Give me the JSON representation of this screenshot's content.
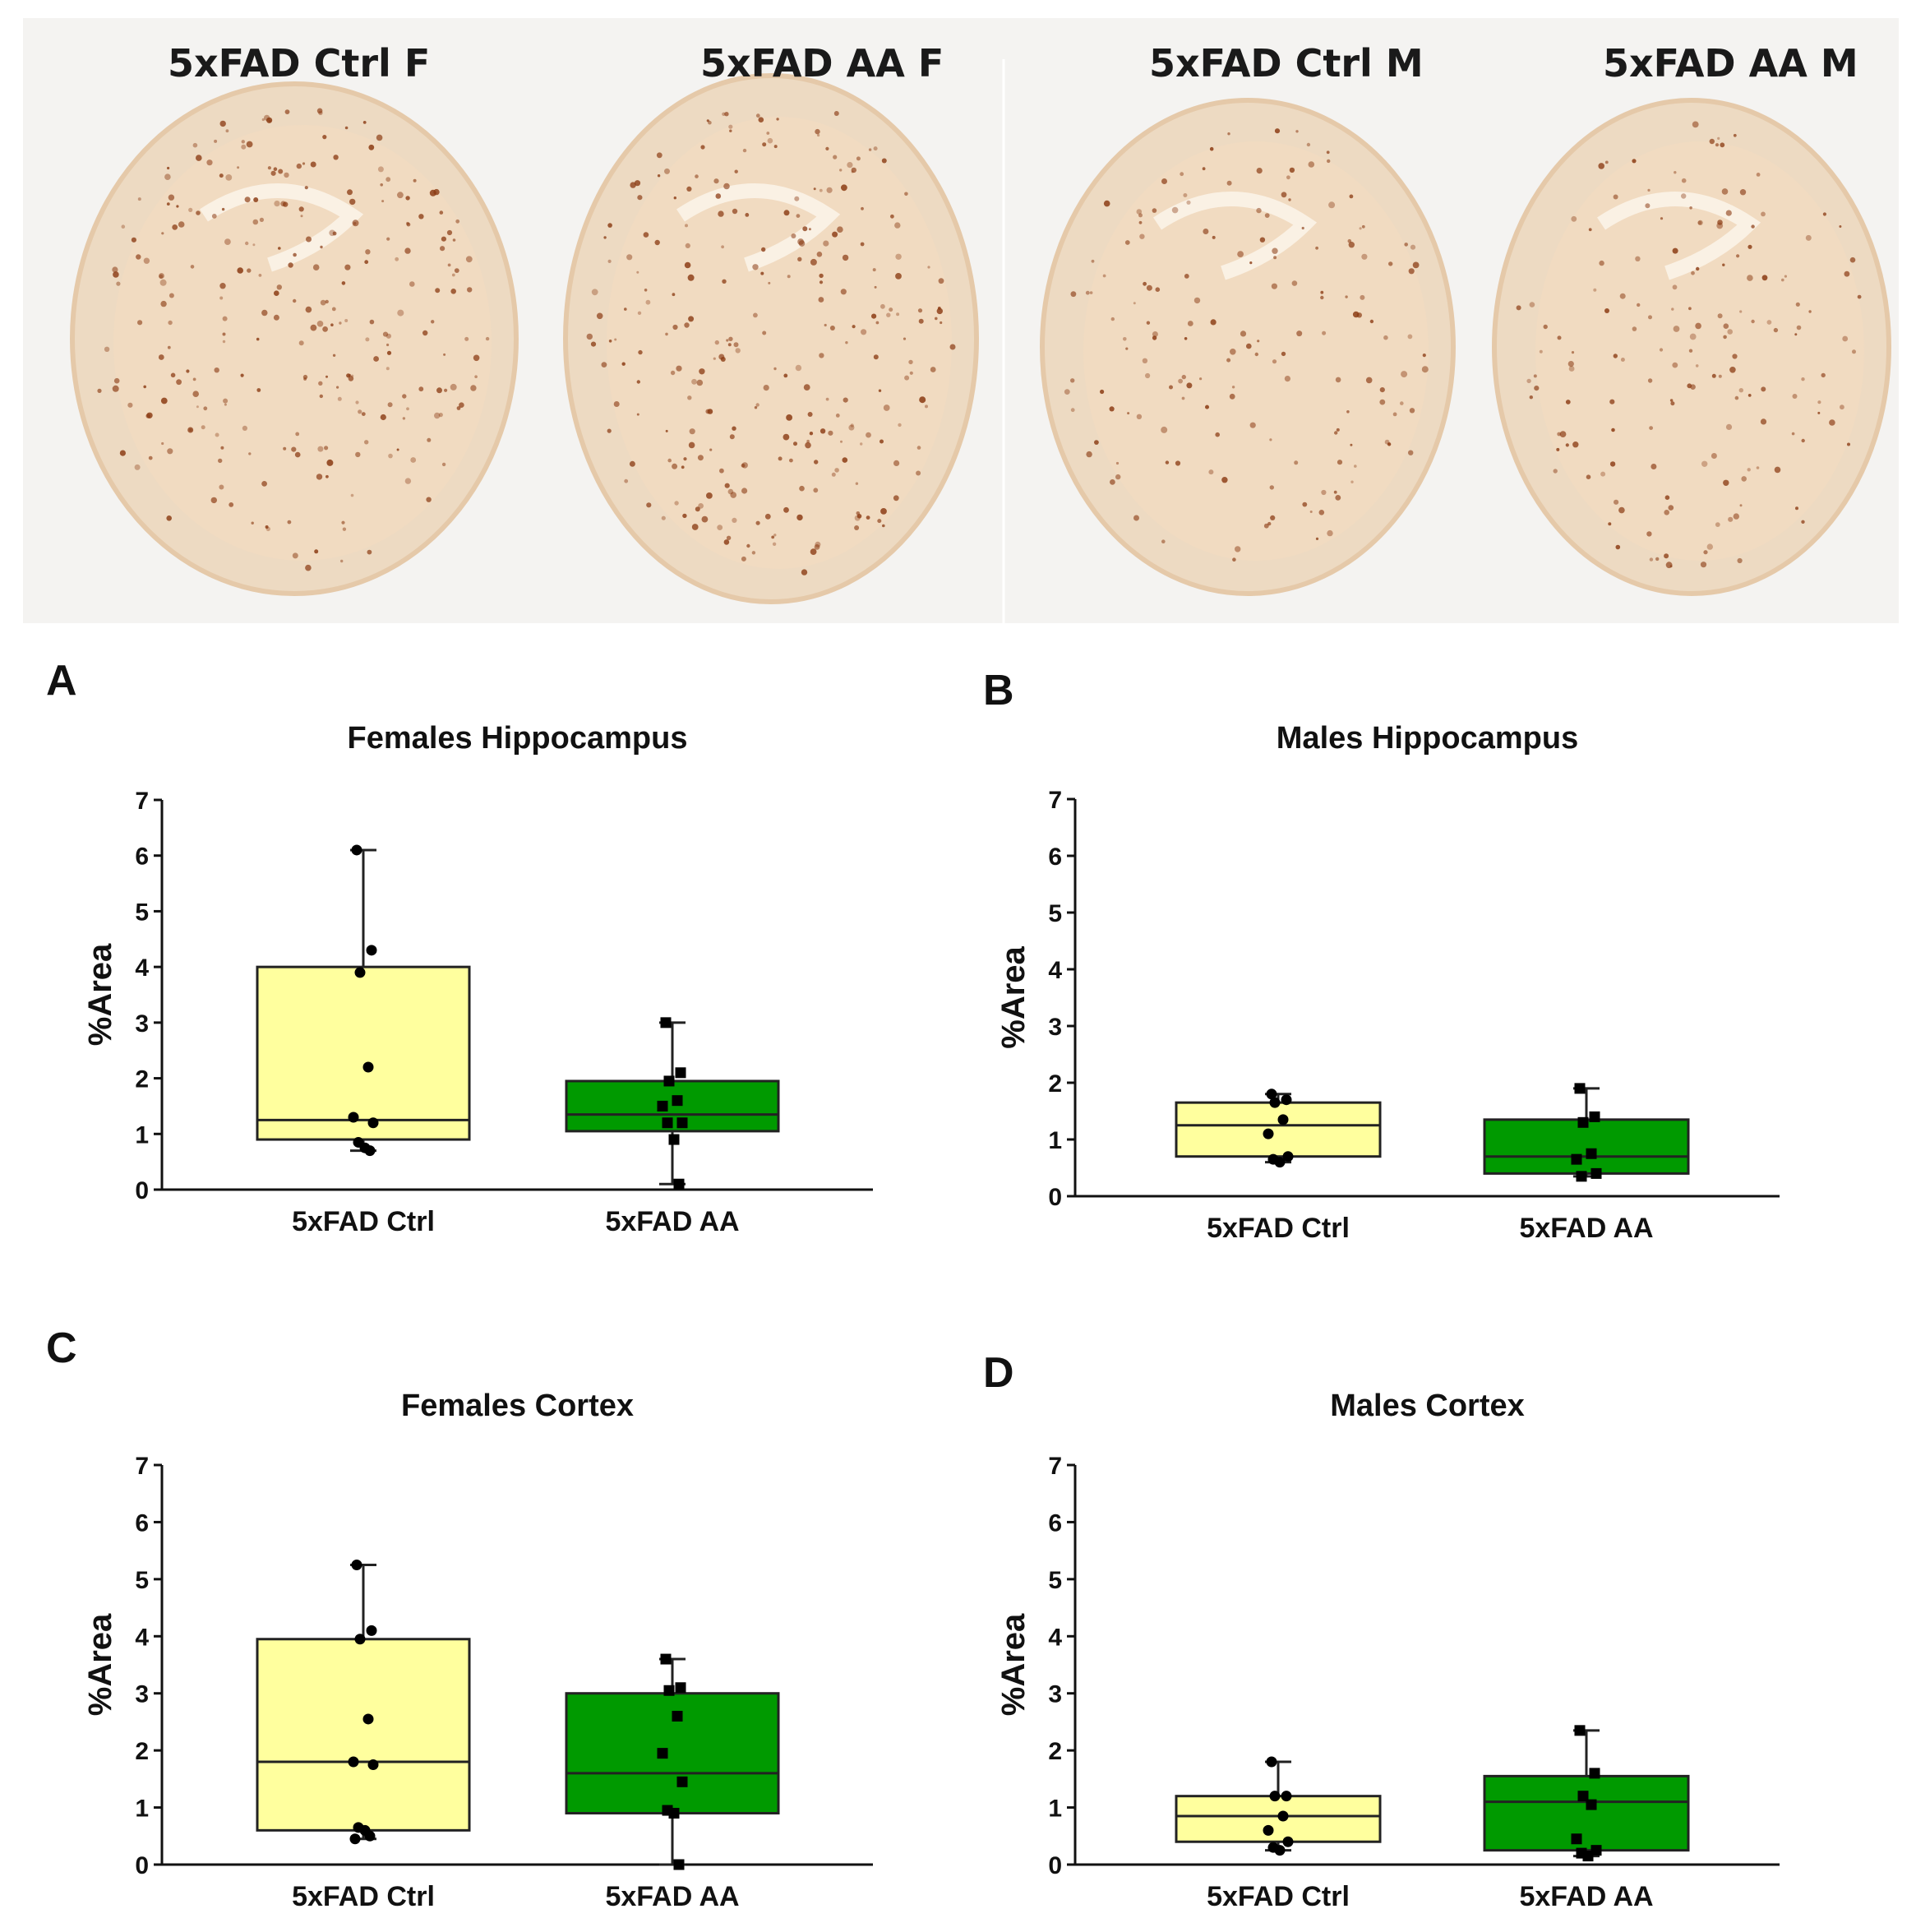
{
  "histology": {
    "labels": [
      "5xFAD Ctrl F",
      "5xFAD AA F",
      "5xFAD Ctrl M",
      "5xFAD AA M"
    ],
    "stain_color": "#e9c79c",
    "plaque_color": "#8a3a12"
  },
  "colors": {
    "ctrl_fill": "#ffff9e",
    "aa_fill": "#009a00",
    "stroke": "#222222",
    "point": "#000000"
  },
  "chart_data": [
    {
      "panel": "A",
      "type": "box",
      "title": "Females Hippocampus",
      "ylabel": "%Area",
      "ylim": [
        0,
        7
      ],
      "yticks": [
        "0",
        "1",
        "2",
        "3",
        "4",
        "5",
        "6",
        "7"
      ],
      "categories": [
        "5xFAD Ctrl",
        "5xFAD AA"
      ],
      "series": [
        {
          "name": "5xFAD Ctrl",
          "min": 0.7,
          "q1": 0.9,
          "median": 1.25,
          "q3": 4.0,
          "max": 6.1,
          "points": [
            6.1,
            4.3,
            3.9,
            2.2,
            1.3,
            1.2,
            0.85,
            0.75,
            0.7
          ]
        },
        {
          "name": "5xFAD AA",
          "min": 0.1,
          "q1": 1.05,
          "median": 1.35,
          "q3": 1.95,
          "max": 3.0,
          "points": [
            3.0,
            2.1,
            1.95,
            1.6,
            1.5,
            1.2,
            1.2,
            0.9,
            0.1
          ]
        }
      ]
    },
    {
      "panel": "B",
      "type": "box",
      "title": "Males Hippocampus",
      "ylabel": "%Area",
      "ylim": [
        0,
        7
      ],
      "yticks": [
        "0",
        "1",
        "2",
        "3",
        "4",
        "5",
        "6",
        "7"
      ],
      "categories": [
        "5xFAD Ctrl",
        "5xFAD AA"
      ],
      "series": [
        {
          "name": "5xFAD Ctrl",
          "min": 0.6,
          "q1": 0.7,
          "median": 1.25,
          "q3": 1.65,
          "max": 1.8,
          "points": [
            1.8,
            1.7,
            1.65,
            1.35,
            1.1,
            0.7,
            0.65,
            0.6
          ]
        },
        {
          "name": "5xFAD AA",
          "min": 0.35,
          "q1": 0.4,
          "median": 0.7,
          "q3": 1.35,
          "max": 1.9,
          "points": [
            1.9,
            1.4,
            1.3,
            0.75,
            0.65,
            0.4,
            0.35
          ]
        }
      ]
    },
    {
      "panel": "C",
      "type": "box",
      "title": "Females Cortex",
      "ylabel": "%Area",
      "ylim": [
        0,
        7
      ],
      "yticks": [
        "0",
        "1",
        "2",
        "3",
        "4",
        "5",
        "6",
        "7"
      ],
      "categories": [
        "5xFAD Ctrl",
        "5xFAD AA"
      ],
      "series": [
        {
          "name": "5xFAD Ctrl",
          "min": 0.45,
          "q1": 0.6,
          "median": 1.8,
          "q3": 3.95,
          "max": 5.25,
          "points": [
            5.25,
            4.1,
            3.95,
            2.55,
            1.8,
            1.75,
            0.65,
            0.6,
            0.5,
            0.45
          ]
        },
        {
          "name": "5xFAD AA",
          "min": 0.0,
          "q1": 0.9,
          "median": 1.6,
          "q3": 3.0,
          "max": 3.6,
          "points": [
            3.6,
            3.1,
            3.05,
            2.6,
            1.95,
            1.45,
            0.95,
            0.9,
            0.0
          ]
        }
      ]
    },
    {
      "panel": "D",
      "type": "box",
      "title": "Males Cortex",
      "ylabel": "%Area",
      "ylim": [
        0,
        7
      ],
      "yticks": [
        "0",
        "1",
        "2",
        "3",
        "4",
        "5",
        "6",
        "7"
      ],
      "categories": [
        "5xFAD Ctrl",
        "5xFAD AA"
      ],
      "series": [
        {
          "name": "5xFAD Ctrl",
          "min": 0.25,
          "q1": 0.4,
          "median": 0.85,
          "q3": 1.2,
          "max": 1.8,
          "points": [
            1.8,
            1.2,
            1.2,
            0.85,
            0.6,
            0.4,
            0.3,
            0.25
          ]
        },
        {
          "name": "5xFAD AA",
          "min": 0.15,
          "q1": 0.25,
          "median": 1.1,
          "q3": 1.55,
          "max": 2.35,
          "points": [
            2.35,
            1.6,
            1.2,
            1.05,
            0.45,
            0.25,
            0.2,
            0.15
          ]
        }
      ]
    }
  ]
}
